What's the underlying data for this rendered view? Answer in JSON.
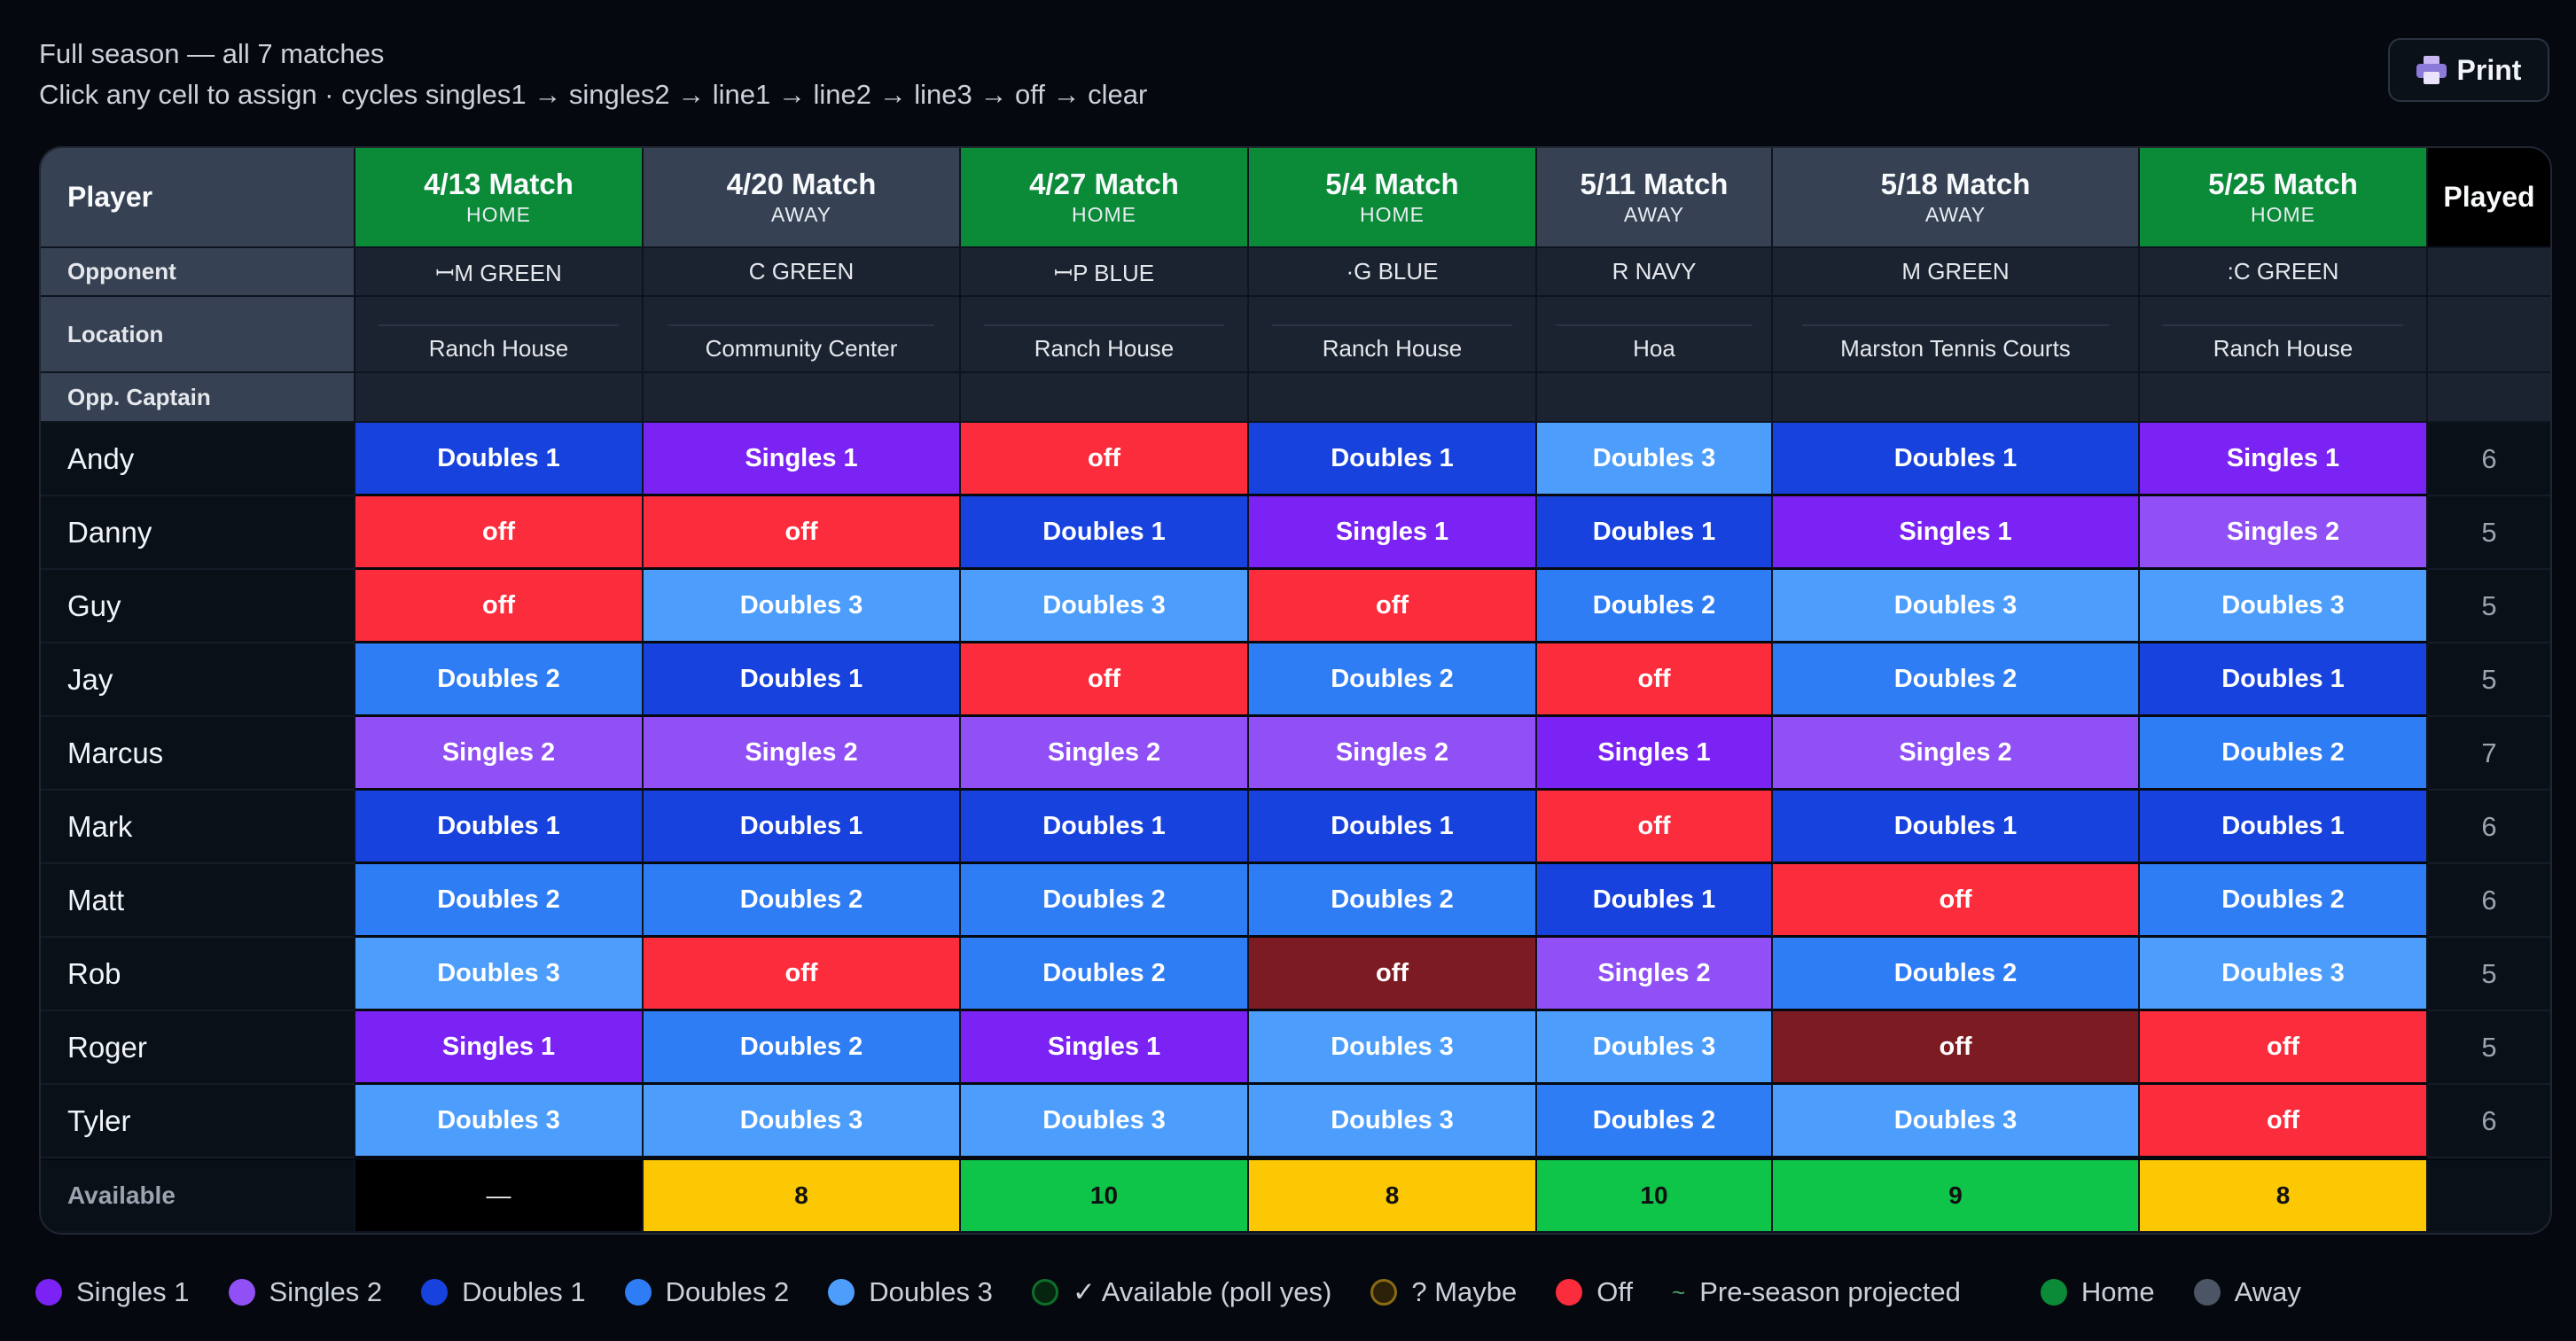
{
  "header": {
    "subtitle1": "Full season — all 7 matches",
    "subtitle2": "Click any cell to assign · cycles singles1 → singles2 → line1 → line2 → line3 → off → clear",
    "print_label": "Print"
  },
  "table": {
    "player_header": "Player",
    "played_header": "Played",
    "opponent_label": "Opponent",
    "location_label": "Location",
    "captain_label": "Opp. Captain",
    "available_label": "Available",
    "matches": [
      {
        "title": "4/13 Match",
        "venue": "HOME",
        "opponent": "ꟷM GREEN",
        "location": "Ranch House"
      },
      {
        "title": "4/20 Match",
        "venue": "AWAY",
        "opponent": "C GREEN",
        "location": "Community Center"
      },
      {
        "title": "4/27 Match",
        "venue": "HOME",
        "opponent": "ꟷP BLUE",
        "location": "Ranch House"
      },
      {
        "title": "5/4 Match",
        "venue": "HOME",
        "opponent": "·G BLUE",
        "location": "Ranch House"
      },
      {
        "title": "5/11 Match",
        "venue": "AWAY",
        "opponent": "R NAVY",
        "location": "Hoa"
      },
      {
        "title": "5/18 Match",
        "venue": "AWAY",
        "opponent": "M GREEN",
        "location": "Marston Tennis Courts"
      },
      {
        "title": "5/25 Match",
        "venue": "HOME",
        "opponent": ":C GREEN",
        "location": "Ranch House"
      }
    ],
    "players": [
      {
        "name": "Andy",
        "cells": [
          "Doubles 1",
          "Singles 1",
          "off",
          "Doubles 1",
          "Doubles 3",
          "Doubles 1",
          "Singles 1"
        ],
        "played": "6"
      },
      {
        "name": "Danny",
        "cells": [
          "off",
          "off",
          "Doubles 1",
          "Singles 1",
          "Doubles 1",
          "Singles 1",
          "Singles 2"
        ],
        "played": "5"
      },
      {
        "name": "Guy",
        "cells": [
          "off",
          "Doubles 3",
          "Doubles 3",
          "off",
          "Doubles 2",
          "Doubles 3",
          "Doubles 3"
        ],
        "played": "5"
      },
      {
        "name": "Jay",
        "cells": [
          "Doubles 2",
          "Doubles 1",
          "off",
          "Doubles 2",
          "off",
          "Doubles 2",
          "Doubles 1"
        ],
        "played": "5"
      },
      {
        "name": "Marcus",
        "cells": [
          "Singles 2",
          "Singles 2",
          "Singles 2",
          "Singles 2",
          "Singles 1",
          "Singles 2",
          "Doubles 2"
        ],
        "played": "7"
      },
      {
        "name": "Mark",
        "cells": [
          "Doubles 1",
          "Doubles 1",
          "Doubles 1",
          "Doubles 1",
          "off",
          "Doubles 1",
          "Doubles 1"
        ],
        "played": "6"
      },
      {
        "name": "Matt",
        "cells": [
          "Doubles 2",
          "Doubles 2",
          "Doubles 2",
          "Doubles 2",
          "Doubles 1",
          "off",
          "Doubles 2"
        ],
        "played": "6"
      },
      {
        "name": "Rob",
        "cells": [
          "Doubles 3",
          "off",
          "Doubles 2",
          "off",
          "Singles 2",
          "Doubles 2",
          "Doubles 3"
        ],
        "played": "5"
      },
      {
        "name": "Roger",
        "cells": [
          "Singles 1",
          "Doubles 2",
          "Singles 1",
          "Doubles 3",
          "Doubles 3",
          "off",
          "off"
        ],
        "played": "5"
      },
      {
        "name": "Tyler",
        "cells": [
          "Doubles 3",
          "Doubles 3",
          "Doubles 3",
          "Doubles 3",
          "Doubles 2",
          "Doubles 3",
          "off"
        ],
        "played": "6"
      }
    ],
    "cell_styles": [
      [
        "d1",
        "s1",
        "off",
        "d1",
        "d3",
        "d1",
        "s1"
      ],
      [
        "off",
        "off",
        "d1",
        "s1",
        "d1",
        "s1",
        "s2"
      ],
      [
        "off",
        "d3",
        "d3",
        "off",
        "d2",
        "d3",
        "d3"
      ],
      [
        "d2",
        "d1",
        "off",
        "d2",
        "off",
        "d2",
        "d1"
      ],
      [
        "s2",
        "s2",
        "s2",
        "s2",
        "s1",
        "s2",
        "d2"
      ],
      [
        "d1",
        "d1",
        "d1",
        "d1",
        "off",
        "d1",
        "d1"
      ],
      [
        "d2",
        "d2",
        "d2",
        "d2",
        "d1",
        "off",
        "d2"
      ],
      [
        "d3",
        "off",
        "d2",
        "offd",
        "s2",
        "d2",
        "d3"
      ],
      [
        "s1",
        "d2",
        "s1",
        "d3",
        "d3",
        "offd",
        "off"
      ],
      [
        "d3",
        "d3",
        "d3",
        "d3",
        "d2",
        "d3",
        "off"
      ]
    ],
    "available": [
      "—",
      "8",
      "10",
      "8",
      "10",
      "9",
      "8"
    ],
    "available_styles": [
      "dash",
      "yellow",
      "green",
      "yellow",
      "green",
      "green",
      "yellow"
    ]
  },
  "legend": [
    {
      "label": "Singles 1",
      "color": "#7b23f5"
    },
    {
      "label": "Singles 2",
      "color": "#9150f6"
    },
    {
      "label": "Doubles 1",
      "color": "#1742de"
    },
    {
      "label": "Doubles 2",
      "color": "#2f7df4"
    },
    {
      "label": "Doubles 3",
      "color": "#4d9efc"
    },
    {
      "label": "✓ Available (poll yes)",
      "color": "ring-g"
    },
    {
      "label": "? Maybe",
      "color": "ring-y"
    },
    {
      "label": "Off",
      "color": "#fb2c3c"
    },
    {
      "label": "Pre-season projected",
      "color": "tilde"
    },
    {
      "label": "Home",
      "color": "#0b8a37"
    },
    {
      "label": "Away",
      "color": "#4b5566"
    }
  ]
}
